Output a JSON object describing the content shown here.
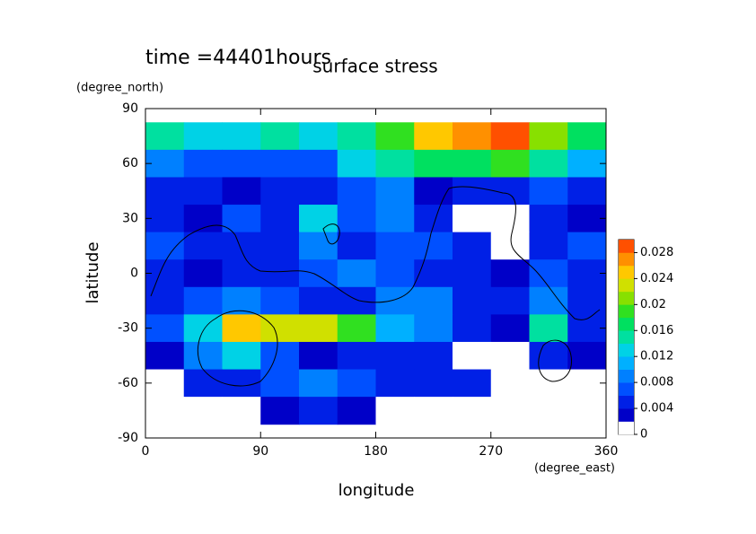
{
  "chart_data": {
    "type": "contour",
    "title": "surface stress",
    "subtitle": "time =44401hours",
    "x_label": "longitude",
    "x_unit": "(degree_east)",
    "y_label": "latitude",
    "y_unit": "(degree_north)",
    "xlim": [
      0,
      360
    ],
    "xticks": [
      0,
      90,
      180,
      270,
      360
    ],
    "ylim": [
      -90,
      90
    ],
    "yticks": [
      -90,
      -60,
      -30,
      0,
      30,
      60,
      90
    ],
    "x": [
      15,
      45,
      75,
      105,
      135,
      165,
      195,
      225,
      255,
      285,
      315,
      345
    ],
    "y": [
      75,
      60,
      45,
      30,
      15,
      0,
      -15,
      -30,
      -45,
      -60,
      -75
    ],
    "z": [
      [
        0.014,
        0.012,
        0.012,
        0.014,
        0.012,
        0.014,
        0.018,
        0.024,
        0.026,
        0.028,
        0.02,
        0.016
      ],
      [
        0.008,
        0.006,
        0.006,
        0.006,
        0.006,
        0.012,
        0.014,
        0.016,
        0.016,
        0.018,
        0.014,
        0.01
      ],
      [
        0.004,
        0.004,
        0.002,
        0.004,
        0.004,
        0.006,
        0.008,
        0.002,
        0.004,
        0.004,
        0.006,
        0.004
      ],
      [
        0.004,
        0.002,
        0.006,
        0.004,
        0.012,
        0.006,
        0.008,
        0.004,
        0,
        0,
        0.004,
        0.002
      ],
      [
        0.006,
        0.004,
        0.004,
        0.004,
        0.008,
        0.004,
        0.006,
        0.006,
        0.004,
        0,
        0.004,
        0.006
      ],
      [
        0.004,
        0.002,
        0.004,
        0.004,
        0.006,
        0.008,
        0.006,
        0.004,
        0.004,
        0.002,
        0.006,
        0.004
      ],
      [
        0.004,
        0.006,
        0.008,
        0.006,
        0.004,
        0.004,
        0.008,
        0.008,
        0.004,
        0.004,
        0.008,
        0.004
      ],
      [
        0.006,
        0.012,
        0.024,
        0.022,
        0.022,
        0.018,
        0.01,
        0.008,
        0.004,
        0.002,
        0.014,
        0.004
      ],
      [
        0.002,
        0.008,
        0.012,
        0.006,
        0.002,
        0.004,
        0.004,
        0.004,
        0,
        0,
        0.004,
        0.002
      ],
      [
        0,
        0.004,
        0.004,
        0.006,
        0.008,
        0.006,
        0.004,
        0.004,
        0.004,
        0,
        0,
        0
      ],
      [
        0,
        0,
        0,
        0.002,
        0.004,
        0.002,
        0,
        0,
        0,
        0,
        0,
        0
      ]
    ],
    "clim": [
      0,
      0.03
    ],
    "cticks": [
      0,
      0.004,
      0.008,
      0.012,
      0.016,
      0.02,
      0.024,
      0.028
    ],
    "colors": [
      "#ffffff",
      "#0000c8",
      "#0020e6",
      "#0050ff",
      "#0080ff",
      "#00b0ff",
      "#00d2e6",
      "#00e0a0",
      "#00e060",
      "#30e020",
      "#88e000",
      "#d0e000",
      "#ffc800",
      "#ff9000",
      "#ff5000"
    ]
  }
}
